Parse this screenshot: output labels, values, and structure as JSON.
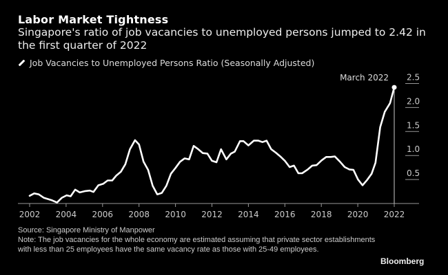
{
  "chart_data": {
    "type": "line",
    "title": "Labor Market Tightness",
    "subtitle": "Singapore's ratio of job vacancies to unemployed persons jumped to 2.42 in the first quarter of 2022",
    "legend": [
      "Job Vacancies to Unemployed Persons Ratio (Seasonally Adjusted)"
    ],
    "legend_placement": "top-left",
    "xlabel": "",
    "ylabel": "",
    "xlim": [
      2001.3,
      2023.3
    ],
    "ylim": [
      0,
      2.5
    ],
    "x_ticks": [
      "2002",
      "2004",
      "2006",
      "2008",
      "2010",
      "2012",
      "2014",
      "2016",
      "2018",
      "2020",
      "2022"
    ],
    "y_ticks": [
      "0.5",
      "1.0",
      "1.5",
      "2.0",
      "2.5"
    ],
    "grid": false,
    "annotation": {
      "label": "March 2022",
      "x": 2022.0,
      "y": 2.42
    },
    "series": [
      {
        "name": "Job Vacancies to Unemployed Persons Ratio (Seasonally Adjusted)",
        "color": "#ffffff",
        "x": [
          2002.0,
          2002.25,
          2002.5,
          2002.77,
          2003.2,
          2003.5,
          2003.77,
          2004.03,
          2004.25,
          2004.5,
          2004.75,
          2005.05,
          2005.3,
          2005.5,
          2005.77,
          2006.03,
          2006.28,
          2006.53,
          2006.75,
          2007.0,
          2007.25,
          2007.5,
          2007.78,
          2008.0,
          2008.25,
          2008.5,
          2008.75,
          2009.0,
          2009.25,
          2009.5,
          2009.75,
          2010.0,
          2010.25,
          2010.5,
          2010.75,
          2011.0,
          2011.25,
          2011.5,
          2011.75,
          2012.0,
          2012.25,
          2012.5,
          2012.79,
          2013.04,
          2013.25,
          2013.54,
          2013.73,
          2014.0,
          2014.3,
          2014.55,
          2014.77,
          2015.0,
          2015.25,
          2015.5,
          2015.78,
          2016.0,
          2016.26,
          2016.5,
          2016.74,
          2016.95,
          2017.26,
          2017.5,
          2017.74,
          2018.02,
          2018.27,
          2018.52,
          2018.74,
          2019.03,
          2019.28,
          2019.53,
          2019.76,
          2020.01,
          2020.26,
          2020.51,
          2020.76,
          2020.97,
          2021.23,
          2021.48,
          2021.77,
          2022.0
        ],
        "y": [
          0.16,
          0.21,
          0.19,
          0.12,
          0.07,
          0.02,
          0.12,
          0.17,
          0.15,
          0.29,
          0.23,
          0.26,
          0.27,
          0.24,
          0.38,
          0.41,
          0.48,
          0.48,
          0.58,
          0.66,
          0.82,
          1.13,
          1.32,
          1.23,
          0.87,
          0.7,
          0.37,
          0.19,
          0.22,
          0.37,
          0.62,
          0.74,
          0.87,
          0.94,
          0.92,
          1.2,
          1.13,
          1.05,
          1.04,
          0.89,
          0.86,
          1.13,
          0.92,
          1.04,
          1.08,
          1.3,
          1.3,
          1.21,
          1.31,
          1.31,
          1.28,
          1.31,
          1.13,
          1.06,
          0.97,
          0.89,
          0.76,
          0.79,
          0.63,
          0.63,
          0.71,
          0.79,
          0.8,
          0.9,
          0.97,
          0.97,
          0.98,
          0.87,
          0.76,
          0.71,
          0.7,
          0.5,
          0.38,
          0.49,
          0.62,
          0.85,
          1.59,
          1.91,
          2.09,
          2.42
        ]
      }
    ]
  },
  "footer": {
    "source": "Source: Singapore Ministry of Manpower",
    "note": "Note: The job vacancies for the whole economy are estimated assuming that private sector establishments with less than 25 employees have the same vacancy rate as those with 25-49 employees.",
    "brand": "Bloomberg"
  }
}
